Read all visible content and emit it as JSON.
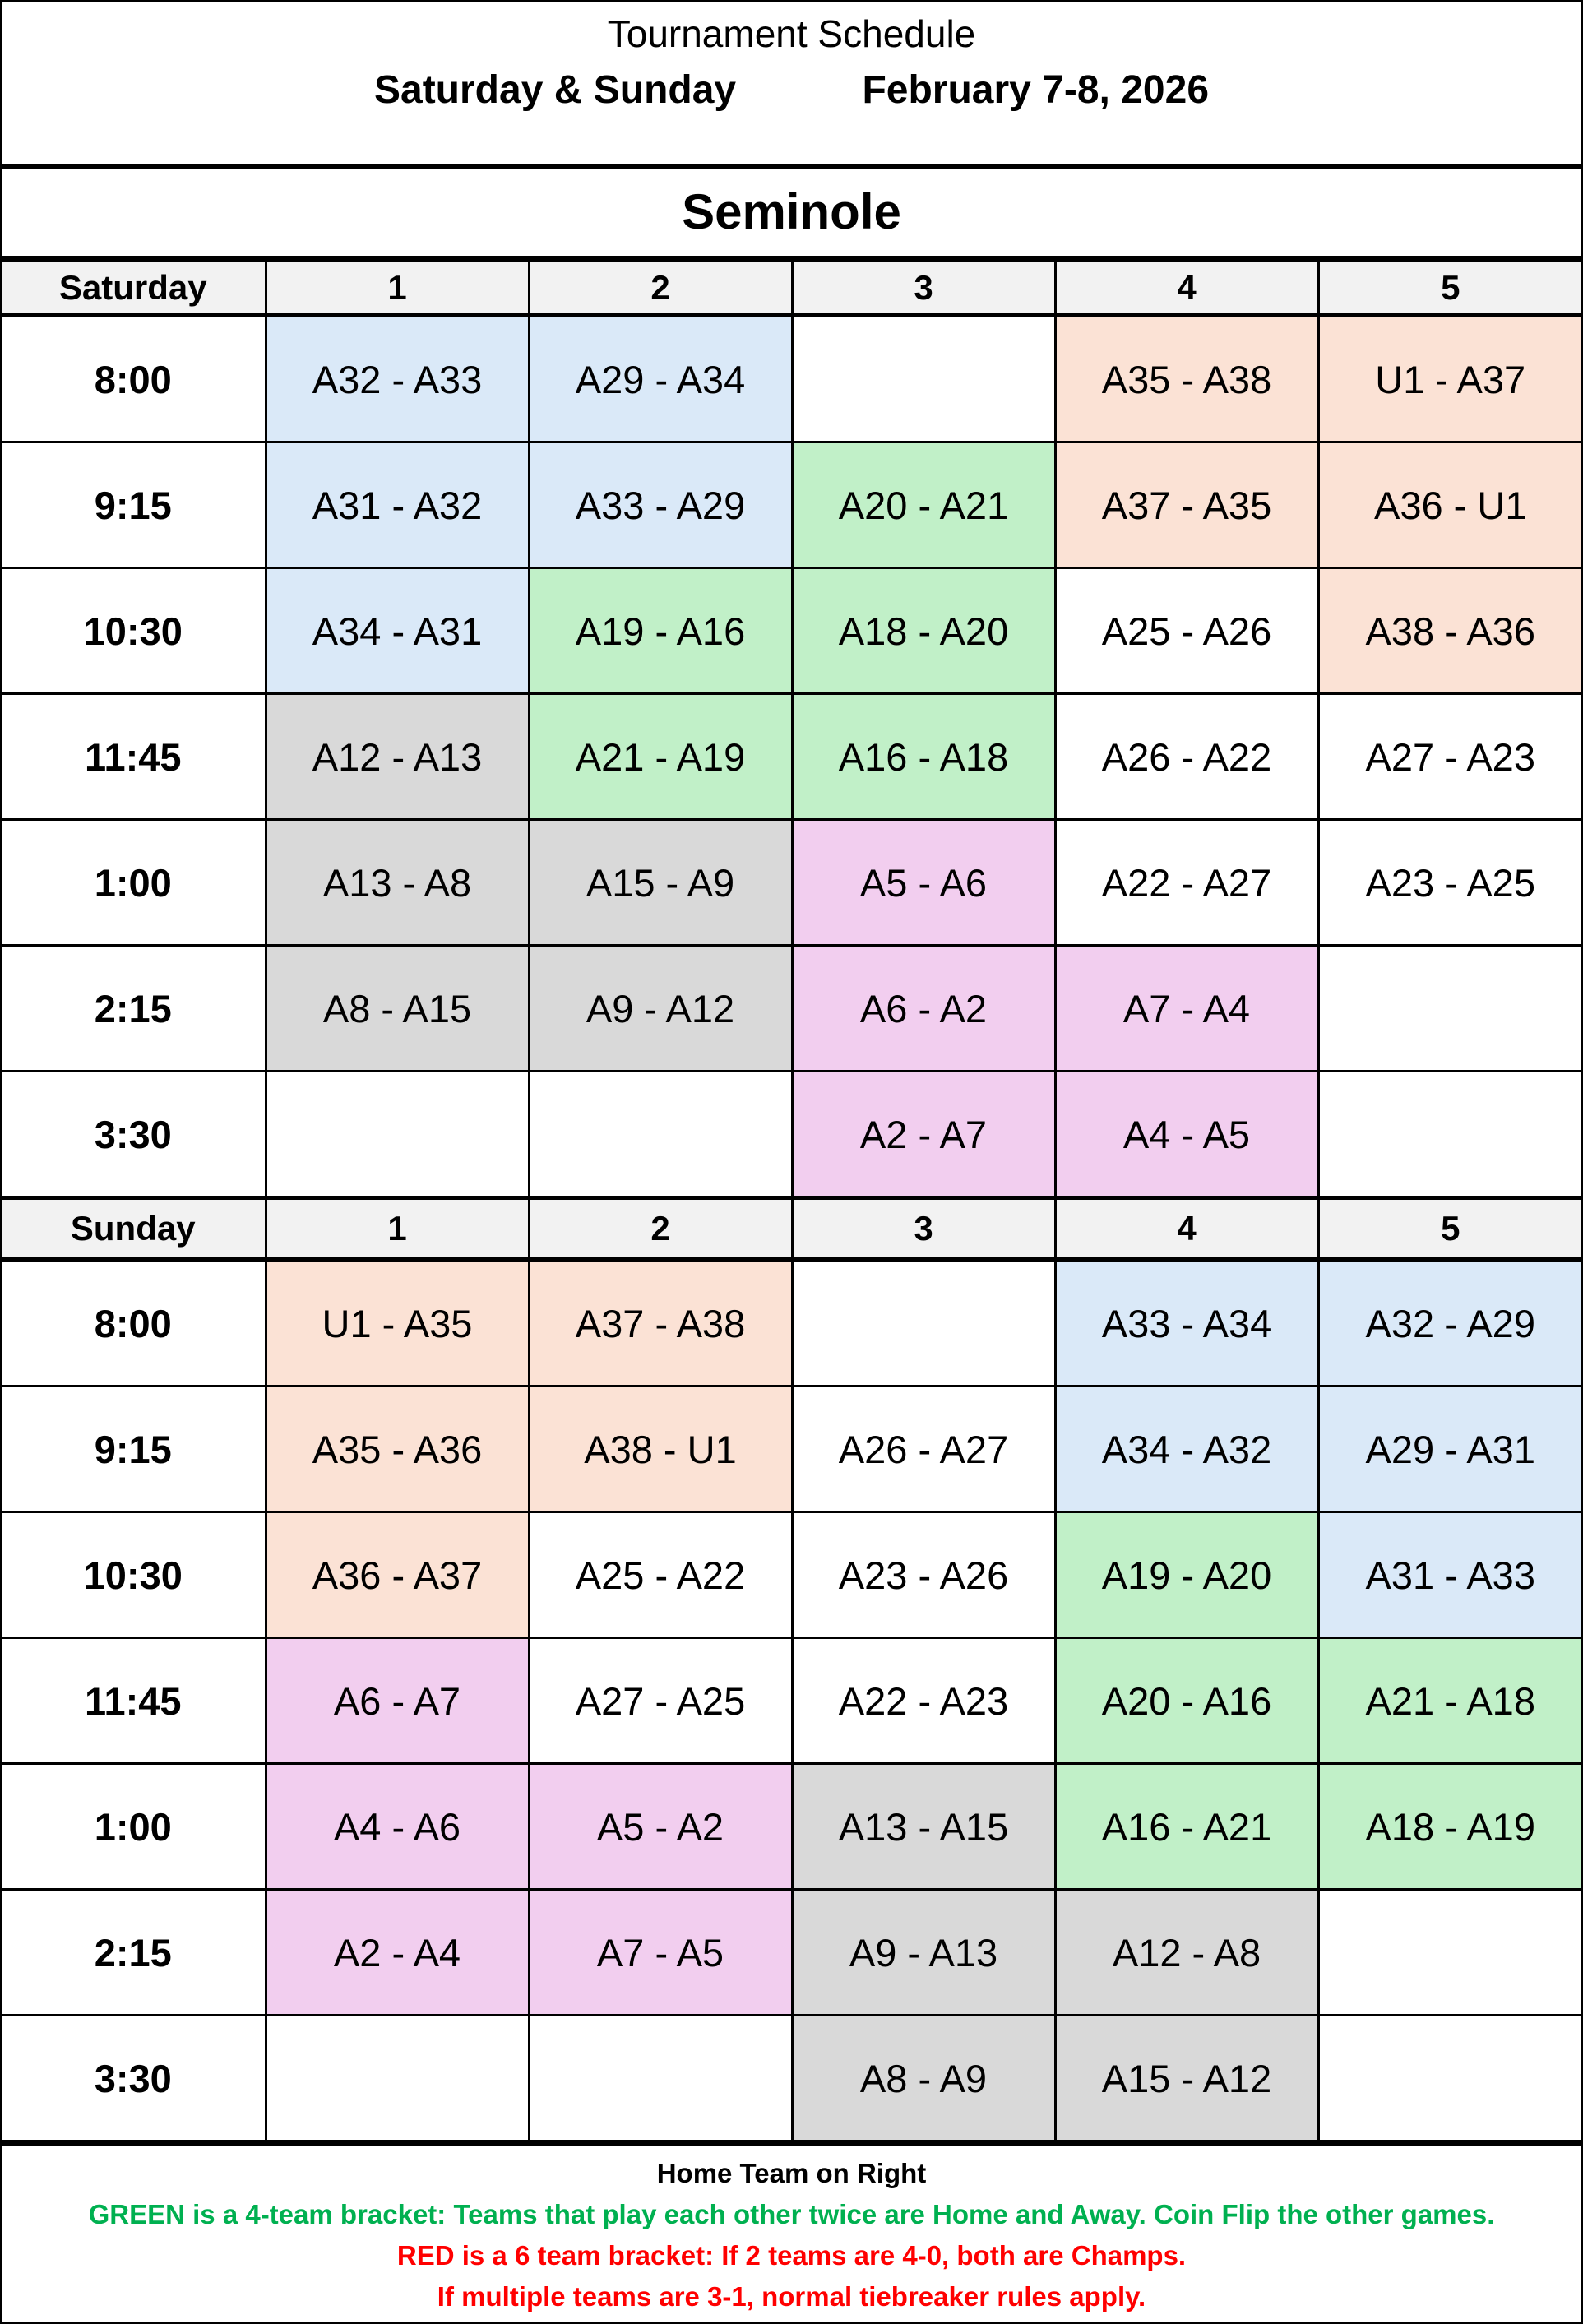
{
  "header": {
    "title": "Tournament Schedule",
    "days": "Saturday & Sunday",
    "dates": "February 7-8, 2026"
  },
  "venue": "Seminole",
  "colors": {
    "blue": "#DAE9F8",
    "peach": "#FBE2D5",
    "green": "#C1F0C8",
    "gray": "#D9D9D9",
    "pink": "#F2CEEF",
    "none": "#FFFFFF",
    "header": "#F2F2F2",
    "legend_green": "#00B050",
    "legend_red": "#FF0000"
  },
  "days": [
    {
      "label": "Saturday",
      "fields": [
        "1",
        "2",
        "3",
        "4",
        "5"
      ],
      "rows": [
        {
          "time": "8:00",
          "games": [
            {
              "t": "A32 - A33",
              "c": "blue"
            },
            {
              "t": "A29 - A34",
              "c": "blue"
            },
            {
              "t": "",
              "c": "none"
            },
            {
              "t": "A35 - A38",
              "c": "peach"
            },
            {
              "t": "U1 - A37",
              "c": "peach"
            }
          ]
        },
        {
          "time": "9:15",
          "games": [
            {
              "t": "A31 - A32",
              "c": "blue"
            },
            {
              "t": "A33 - A29",
              "c": "blue"
            },
            {
              "t": "A20 - A21",
              "c": "green"
            },
            {
              "t": "A37 - A35",
              "c": "peach"
            },
            {
              "t": "A36 - U1",
              "c": "peach"
            }
          ]
        },
        {
          "time": "10:30",
          "games": [
            {
              "t": "A34 - A31",
              "c": "blue"
            },
            {
              "t": "A19 - A16",
              "c": "green"
            },
            {
              "t": "A18 - A20",
              "c": "green"
            },
            {
              "t": "A25 - A26",
              "c": "none"
            },
            {
              "t": "A38 - A36",
              "c": "peach"
            }
          ]
        },
        {
          "time": "11:45",
          "games": [
            {
              "t": "A12 - A13",
              "c": "gray"
            },
            {
              "t": "A21 - A19",
              "c": "green"
            },
            {
              "t": "A16 - A18",
              "c": "green"
            },
            {
              "t": "A26 - A22",
              "c": "none"
            },
            {
              "t": "A27 - A23",
              "c": "none"
            }
          ]
        },
        {
          "time": "1:00",
          "games": [
            {
              "t": "A13 - A8",
              "c": "gray"
            },
            {
              "t": "A15 - A9",
              "c": "gray"
            },
            {
              "t": "A5 - A6",
              "c": "pink"
            },
            {
              "t": "A22 - A27",
              "c": "none"
            },
            {
              "t": "A23 - A25",
              "c": "none"
            }
          ]
        },
        {
          "time": "2:15",
          "games": [
            {
              "t": "A8 - A15",
              "c": "gray"
            },
            {
              "t": "A9 - A12",
              "c": "gray"
            },
            {
              "t": "A6 - A2",
              "c": "pink"
            },
            {
              "t": "A7 - A4",
              "c": "pink"
            },
            {
              "t": "",
              "c": "none"
            }
          ]
        },
        {
          "time": "3:30",
          "games": [
            {
              "t": "",
              "c": "none"
            },
            {
              "t": "",
              "c": "none"
            },
            {
              "t": "A2 - A7",
              "c": "pink"
            },
            {
              "t": "A4 - A5",
              "c": "pink"
            },
            {
              "t": "",
              "c": "none"
            }
          ]
        }
      ]
    },
    {
      "label": "Sunday",
      "fields": [
        "1",
        "2",
        "3",
        "4",
        "5"
      ],
      "rows": [
        {
          "time": "8:00",
          "games": [
            {
              "t": "U1 - A35",
              "c": "peach"
            },
            {
              "t": "A37 - A38",
              "c": "peach"
            },
            {
              "t": "",
              "c": "none"
            },
            {
              "t": "A33 - A34",
              "c": "blue"
            },
            {
              "t": "A32 - A29",
              "c": "blue"
            }
          ]
        },
        {
          "time": "9:15",
          "games": [
            {
              "t": "A35 - A36",
              "c": "peach"
            },
            {
              "t": "A38 - U1",
              "c": "peach"
            },
            {
              "t": "A26 - A27",
              "c": "none"
            },
            {
              "t": "A34 - A32",
              "c": "blue"
            },
            {
              "t": "A29 - A31",
              "c": "blue"
            }
          ]
        },
        {
          "time": "10:30",
          "games": [
            {
              "t": "A36 - A37",
              "c": "peach"
            },
            {
              "t": "A25 - A22",
              "c": "none"
            },
            {
              "t": "A23 - A26",
              "c": "none"
            },
            {
              "t": "A19 - A20",
              "c": "green"
            },
            {
              "t": "A31 - A33",
              "c": "blue"
            }
          ]
        },
        {
          "time": "11:45",
          "games": [
            {
              "t": "A6 - A7",
              "c": "pink"
            },
            {
              "t": "A27 - A25",
              "c": "none"
            },
            {
              "t": "A22 - A23",
              "c": "none"
            },
            {
              "t": "A20 - A16",
              "c": "green"
            },
            {
              "t": "A21 - A18",
              "c": "green"
            }
          ]
        },
        {
          "time": "1:00",
          "games": [
            {
              "t": "A4 - A6",
              "c": "pink"
            },
            {
              "t": "A5 - A2",
              "c": "pink"
            },
            {
              "t": "A13 - A15",
              "c": "gray"
            },
            {
              "t": "A16 - A21",
              "c": "green"
            },
            {
              "t": "A18 - A19",
              "c": "green"
            }
          ]
        },
        {
          "time": "2:15",
          "games": [
            {
              "t": "A2 - A4",
              "c": "pink"
            },
            {
              "t": "A7 - A5",
              "c": "pink"
            },
            {
              "t": "A9 - A13",
              "c": "gray"
            },
            {
              "t": "A12 - A8",
              "c": "gray"
            },
            {
              "t": "",
              "c": "none"
            }
          ]
        },
        {
          "time": "3:30",
          "games": [
            {
              "t": "",
              "c": "none"
            },
            {
              "t": "",
              "c": "none"
            },
            {
              "t": "A8 - A9",
              "c": "gray"
            },
            {
              "t": "A15 - A12",
              "c": "gray"
            },
            {
              "t": "",
              "c": "none"
            }
          ]
        }
      ]
    }
  ],
  "footer": {
    "home_note": "Home Team on Right",
    "green_note": "GREEN is a 4-team bracket:  Teams that play each other twice are Home and Away.  Coin Flip the other games.",
    "red_note_1": "RED is a 6 team bracket:  If 2 teams are 4-0, both are Champs.",
    "red_note_2": "If multiple teams are 3-1, normal tiebreaker rules apply."
  }
}
